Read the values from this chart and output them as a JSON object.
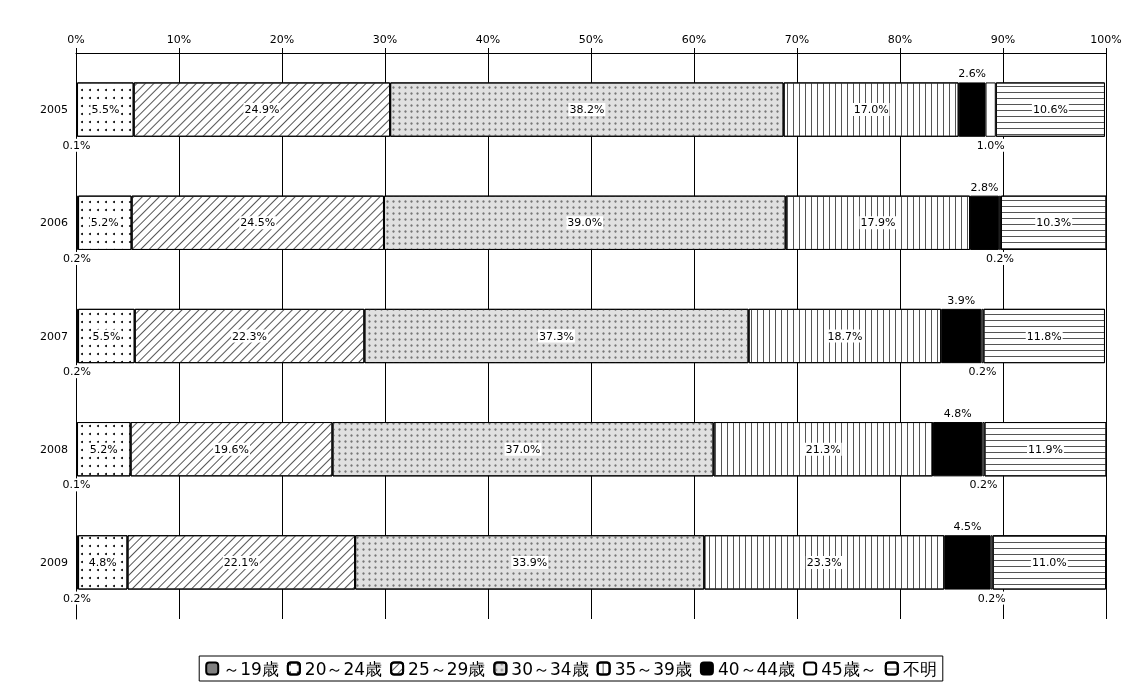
{
  "chart_data": {
    "type": "bar",
    "orientation": "horizontal",
    "stacked": true,
    "categories": [
      "2005",
      "2006",
      "2007",
      "2008",
      "2009"
    ],
    "xlim": [
      0,
      100
    ],
    "xticks": [
      {
        "value": 0,
        "label": "0%"
      },
      {
        "value": 10,
        "label": "10%"
      },
      {
        "value": 20,
        "label": "20%"
      },
      {
        "value": 30,
        "label": "30%"
      },
      {
        "value": 40,
        "label": "40%"
      },
      {
        "value": 50,
        "label": "50%"
      },
      {
        "value": 60,
        "label": "60%"
      },
      {
        "value": 70,
        "label": "70%"
      },
      {
        "value": 80,
        "label": "80%"
      },
      {
        "value": 90,
        "label": "90%"
      },
      {
        "value": 100,
        "label": "100%"
      }
    ],
    "grid": "x",
    "legend": "bottom",
    "series": [
      {
        "name": "～19歳",
        "color": "#808080",
        "values": [
          0.1,
          0.2,
          0.2,
          0.1,
          0.2
        ],
        "value_labels": [
          "0.1%",
          "0.2%",
          "0.2%",
          "0.1%",
          "0.2%"
        ]
      },
      {
        "name": "20～24歳",
        "color": "#ffffff",
        "values": [
          5.5,
          5.2,
          5.5,
          5.2,
          4.8
        ],
        "value_labels": [
          "5.5%",
          "5.2%",
          "5.5%",
          "5.2%",
          "4.8%"
        ]
      },
      {
        "name": "25～29歳",
        "color": "#ffffff",
        "values": [
          24.9,
          24.5,
          22.3,
          19.6,
          22.1
        ],
        "value_labels": [
          "24.9%",
          "24.5%",
          "22.3%",
          "19.6%",
          "22.1%"
        ]
      },
      {
        "name": "30～34歳",
        "color": "#e0e0e0",
        "values": [
          38.2,
          39.0,
          37.3,
          37.0,
          33.9
        ],
        "value_labels": [
          "38.2%",
          "39.0%",
          "37.3%",
          "37.0%",
          "33.9%"
        ]
      },
      {
        "name": "35～39歳",
        "color": "#ffffff",
        "values": [
          17.0,
          17.9,
          18.7,
          21.3,
          23.3
        ],
        "value_labels": [
          "17.0%",
          "17.9%",
          "18.7%",
          "21.3%",
          "23.3%"
        ]
      },
      {
        "name": "40～44歳",
        "color": "#000000",
        "values": [
          2.6,
          2.8,
          3.9,
          4.8,
          4.5
        ],
        "value_labels": [
          "2.6%",
          "2.8%",
          "3.9%",
          "4.8%",
          "4.5%"
        ]
      },
      {
        "name": "45歳～",
        "color": "#ffffff",
        "values": [
          1.0,
          0.2,
          0.2,
          0.2,
          0.2
        ],
        "value_labels": [
          "1.0%",
          "0.2%",
          "0.2%",
          "0.2%",
          "0.2%"
        ]
      },
      {
        "name": "不明",
        "color": "#ffffff",
        "values": [
          10.6,
          10.3,
          11.8,
          11.9,
          11.0
        ],
        "value_labels": [
          "10.6%",
          "10.3%",
          "11.8%",
          "11.9%",
          "11.0%"
        ]
      }
    ]
  }
}
